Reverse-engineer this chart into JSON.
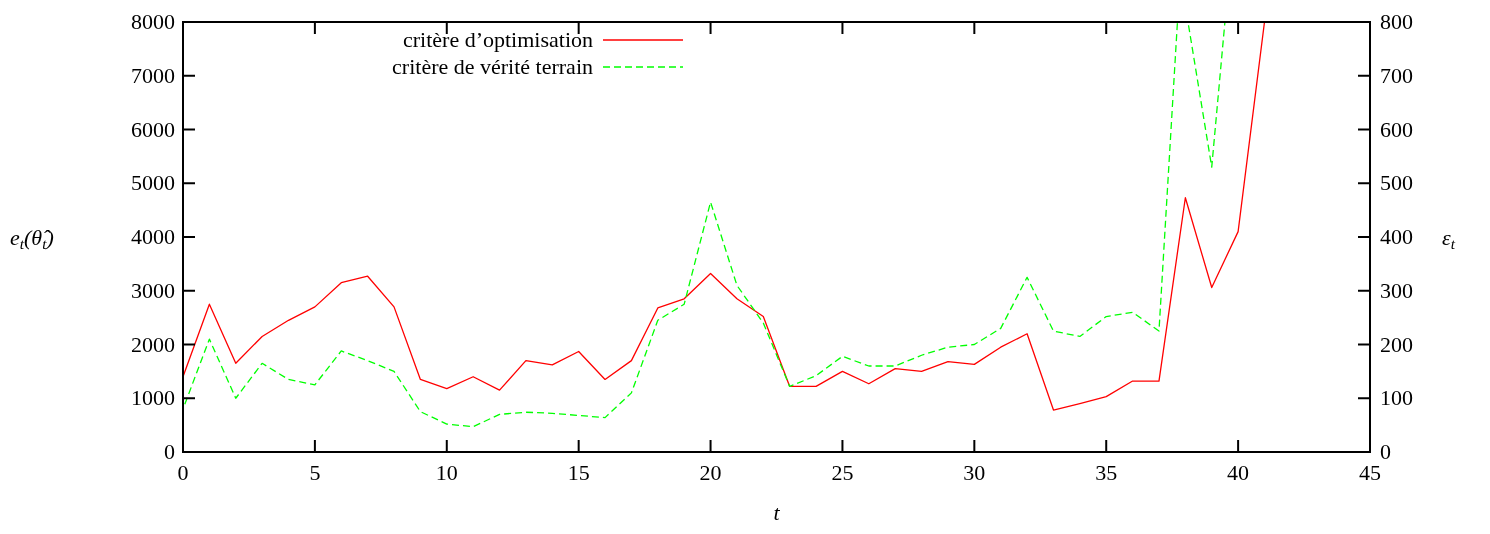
{
  "chart_data": {
    "type": "line",
    "xlabel": "t",
    "ylabel": "e$_{t}$(θ̂$_{t}$)",
    "y2label": "ε$_{t}$",
    "x": [
      0,
      1,
      2,
      3,
      4,
      5,
      6,
      7,
      8,
      9,
      10,
      11,
      12,
      13,
      14,
      15,
      16,
      17,
      18,
      19,
      20,
      21,
      22,
      23,
      24,
      25,
      26,
      27,
      28,
      29,
      30,
      31,
      32,
      33,
      34,
      35,
      36,
      37,
      38,
      39,
      40,
      41
    ],
    "series": [
      {
        "name": "critère d’optimisation",
        "color": "#ff0000",
        "line_style": "solid",
        "values": [
          1400,
          2750,
          1650,
          2150,
          2450,
          2700,
          3150,
          3270,
          2700,
          1350,
          1180,
          1400,
          1150,
          1700,
          1620,
          1870,
          1350,
          1700,
          2680,
          2850,
          3320,
          2850,
          2520,
          1220,
          1220,
          1500,
          1270,
          1550,
          1500,
          1680,
          1630,
          1950,
          2200,
          780,
          900,
          1030,
          1320,
          1320,
          4730,
          3060,
          4100,
          8000
        ]
      },
      {
        "name": "critère de vérité terrain",
        "color": "#00ff00",
        "line_style": "dashed",
        "axis": "y2",
        "x": [
          0,
          1,
          2,
          3,
          4,
          5,
          6,
          7,
          8,
          9,
          10,
          11,
          12,
          13,
          14,
          15,
          16,
          17,
          18,
          19,
          20,
          21,
          22,
          23,
          24,
          25,
          26,
          27,
          28,
          29,
          30,
          31,
          32,
          33,
          34,
          35,
          36,
          37,
          37.7,
          38.1,
          39,
          39.5
        ],
        "values": [
          80,
          210,
          100,
          165,
          135,
          125,
          188,
          170,
          150,
          75,
          52,
          47,
          70,
          74,
          72,
          68,
          64,
          110,
          245,
          275,
          465,
          310,
          240,
          122,
          142,
          178,
          160,
          160,
          180,
          195,
          200,
          230,
          325,
          225,
          215,
          252,
          260,
          225,
          800,
          800,
          530,
          800
        ]
      }
    ],
    "xlim": [
      0,
      45
    ],
    "xticks": [
      0,
      5,
      10,
      15,
      20,
      25,
      30,
      35,
      40,
      45
    ],
    "ylim": [
      0,
      8000
    ],
    "yticks": [
      0,
      1000,
      2000,
      3000,
      4000,
      5000,
      6000,
      7000,
      8000
    ],
    "y2lim": [
      0,
      800
    ],
    "y2ticks": [
      0,
      100,
      200,
      300,
      400,
      500,
      600,
      700,
      800
    ],
    "grid": false,
    "legend": "top left"
  }
}
